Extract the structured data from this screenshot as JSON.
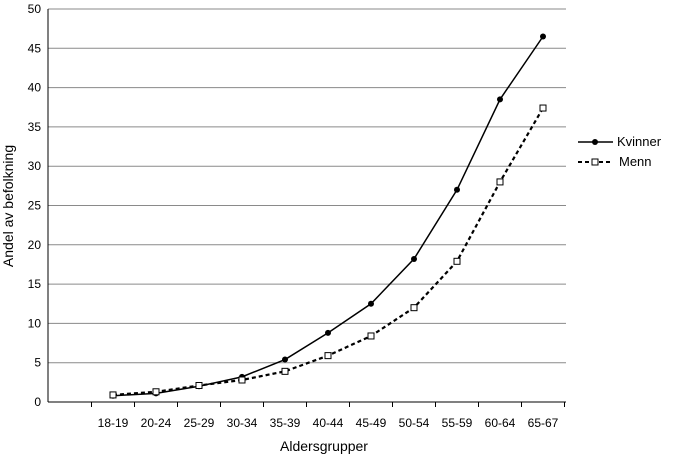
{
  "chart_data": {
    "type": "line",
    "xlabel": "Aldersgrupper",
    "ylabel": "Andel av befolkning",
    "ylim": [
      0,
      50
    ],
    "yticks": [
      0,
      5,
      10,
      15,
      20,
      25,
      30,
      35,
      40,
      45,
      50
    ],
    "grid": "horizontal",
    "legend_position": "right",
    "categories": [
      "18-19",
      "20-24",
      "25-29",
      "30-34",
      "35-39",
      "40-44",
      "45-49",
      "50-54",
      "55-59",
      "60-64",
      "65-67"
    ],
    "series": [
      {
        "name": "Kvinner",
        "style": "solid",
        "marker": "filled-circle",
        "color": "#000000",
        "values": [
          0.8,
          1.1,
          2.0,
          3.2,
          5.4,
          8.8,
          12.5,
          18.2,
          27.0,
          38.5,
          46.5
        ]
      },
      {
        "name": "Menn",
        "style": "dashed",
        "marker": "open-square",
        "color": "#000000",
        "values": [
          0.9,
          1.3,
          2.1,
          2.8,
          3.9,
          5.9,
          8.4,
          12.0,
          17.9,
          28.0,
          37.4
        ]
      }
    ]
  }
}
